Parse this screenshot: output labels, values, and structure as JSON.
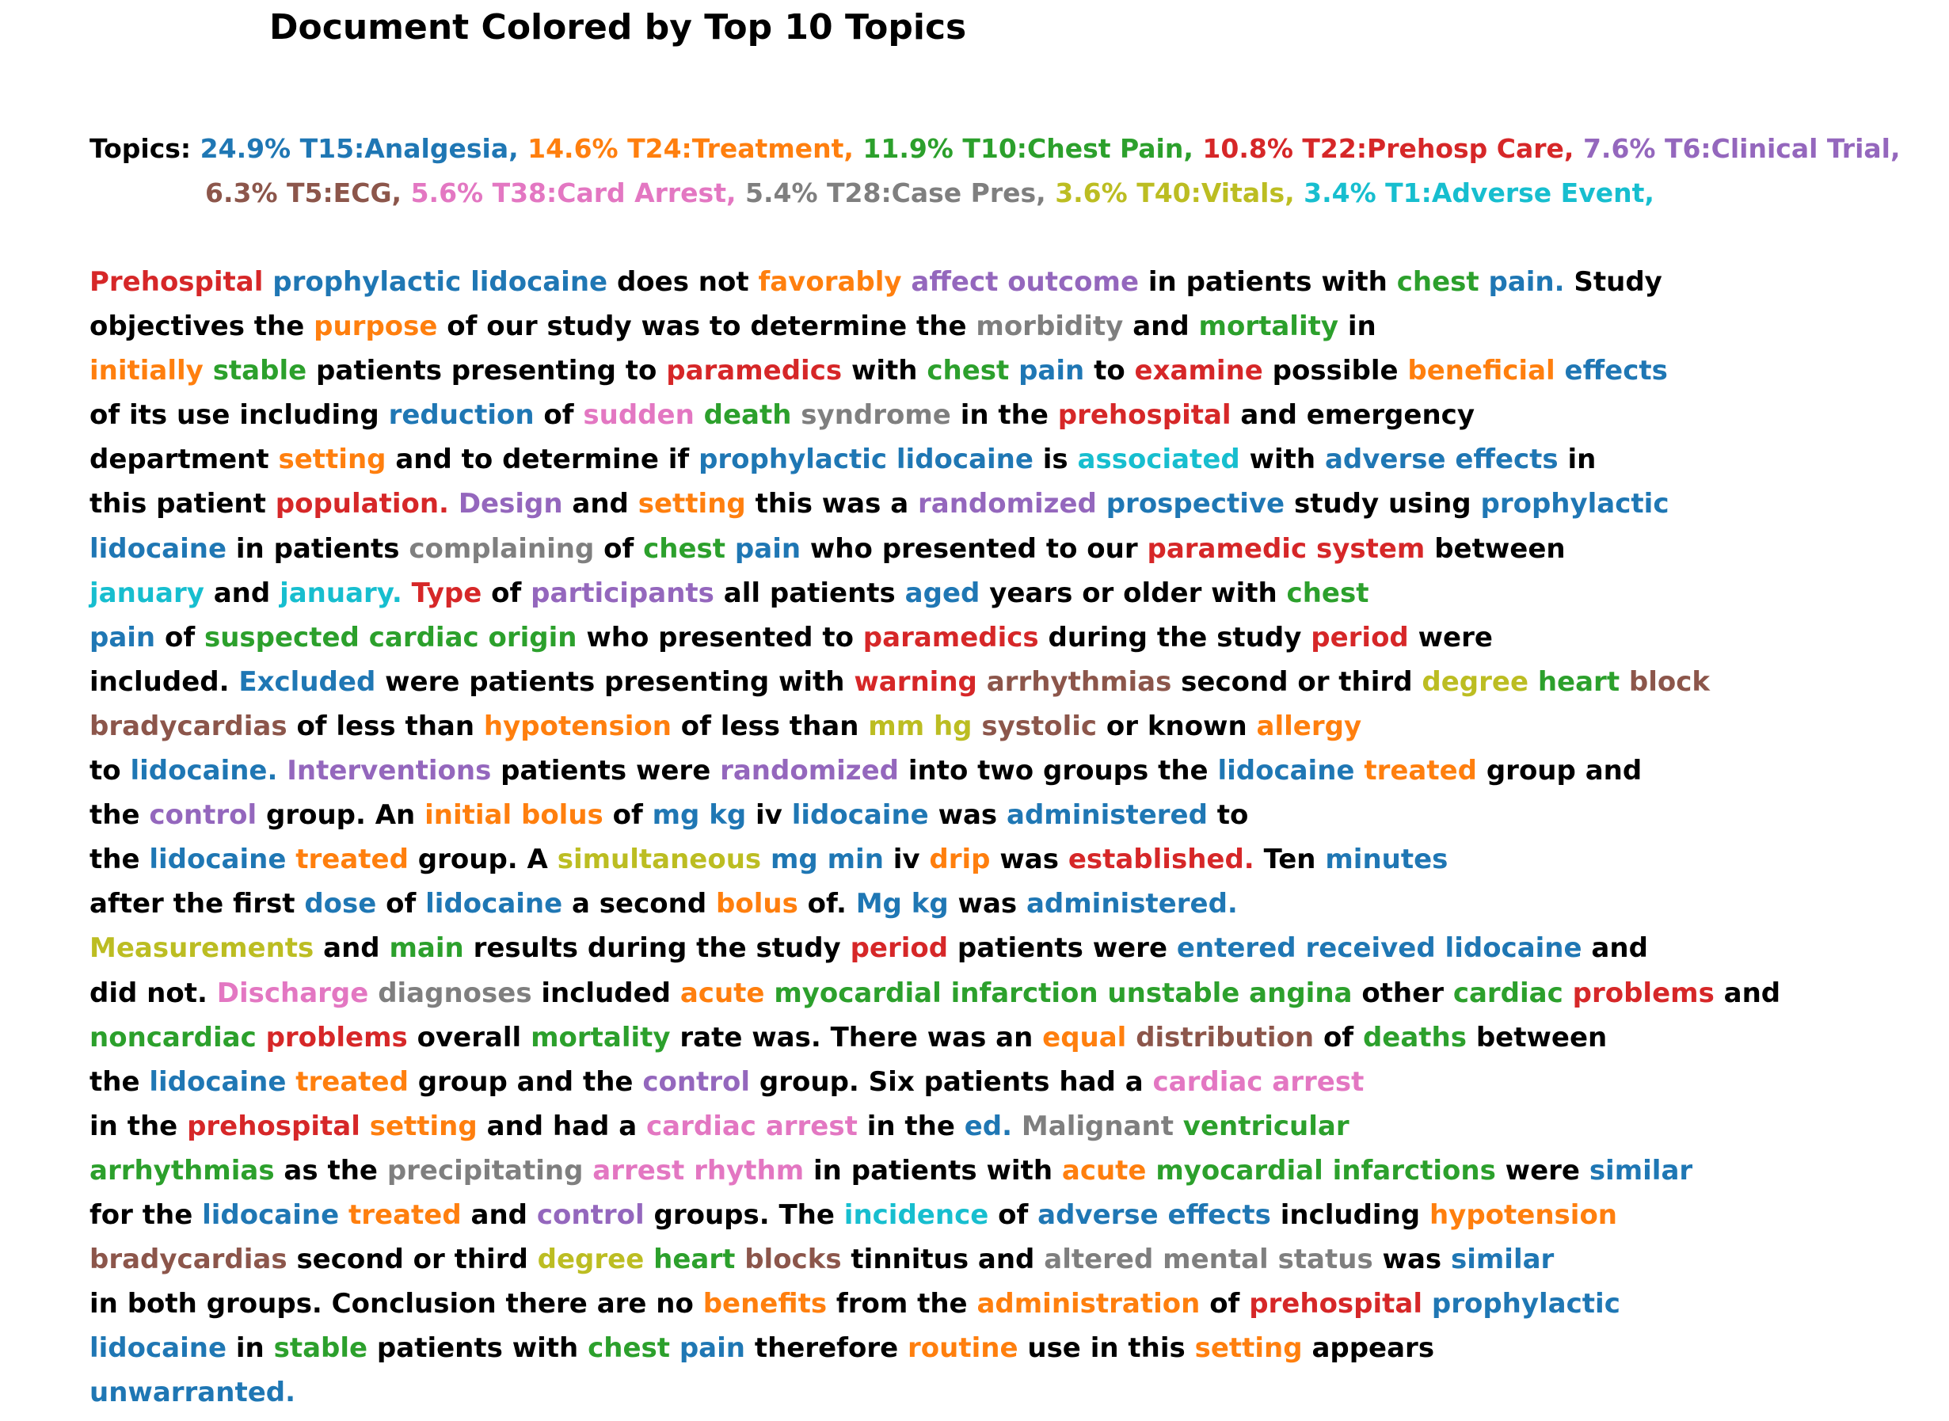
{
  "title": "Document Colored by Top 10 Topics",
  "colors": {
    "plain": "#000000",
    "T15": "#1f77b4",
    "T24": "#ff7f0e",
    "T10": "#2ca02c",
    "T22": "#d62728",
    "T6": "#9467bd",
    "T5": "#8c564b",
    "T38": "#e377c2",
    "T28": "#7f7f7f",
    "T40": "#bcbd22",
    "T1": "#17becf"
  },
  "legend": {
    "label": "Topics:",
    "topics": [
      {
        "text": "24.9% T15:Analgesia,",
        "topic": "T15"
      },
      {
        "text": "14.6% T24:Treatment,",
        "topic": "T24"
      },
      {
        "text": "11.9% T10:Chest Pain,",
        "topic": "T10"
      },
      {
        "text": "10.8% T22:Prehosp Care,",
        "topic": "T22"
      },
      {
        "text": "7.6% T6:Clinical Trial,",
        "topic": "T6"
      },
      {
        "text": "6.3% T5:ECG,",
        "topic": "T5"
      },
      {
        "text": "5.6% T38:Card Arrest,",
        "topic": "T38"
      },
      {
        "text": "5.4% T28:Case Pres,",
        "topic": "T28"
      },
      {
        "text": "3.6% T40:Vitals,",
        "topic": "T40"
      },
      {
        "text": "3.4% T1:Adverse Event,",
        "topic": "T1"
      }
    ]
  },
  "document_lines": [
    [
      [
        "Prehospital",
        "T22"
      ],
      [
        "prophylactic",
        "T15"
      ],
      [
        "lidocaine",
        "T15"
      ],
      [
        "does not",
        null
      ],
      [
        "favorably",
        "T24"
      ],
      [
        "affect",
        "T6"
      ],
      [
        "outcome",
        "T6"
      ],
      [
        "in patients with",
        null
      ],
      [
        "chest",
        "T10"
      ],
      [
        "pain.",
        "T15"
      ],
      [
        "Study",
        null
      ]
    ],
    [
      [
        "objectives the",
        null
      ],
      [
        "purpose",
        "T24"
      ],
      [
        "of our study was to determine the",
        null
      ],
      [
        "morbidity",
        "T28"
      ],
      [
        "and",
        null
      ],
      [
        "mortality",
        "T10"
      ],
      [
        "in",
        null
      ]
    ],
    [
      [
        "initially",
        "T24"
      ],
      [
        "stable",
        "T10"
      ],
      [
        "patients presenting to",
        null
      ],
      [
        "paramedics",
        "T22"
      ],
      [
        "with",
        null
      ],
      [
        "chest",
        "T10"
      ],
      [
        "pain",
        "T15"
      ],
      [
        "to",
        null
      ],
      [
        "examine",
        "T22"
      ],
      [
        "possible",
        null
      ],
      [
        "beneficial",
        "T24"
      ],
      [
        "effects",
        "T15"
      ]
    ],
    [
      [
        "of its use including",
        null
      ],
      [
        "reduction",
        "T15"
      ],
      [
        "of",
        null
      ],
      [
        "sudden",
        "T38"
      ],
      [
        "death",
        "T10"
      ],
      [
        "syndrome",
        "T28"
      ],
      [
        "in the",
        null
      ],
      [
        "prehospital",
        "T22"
      ],
      [
        "and emergency",
        null
      ]
    ],
    [
      [
        "department",
        null
      ],
      [
        "setting",
        "T24"
      ],
      [
        "and to determine if",
        null
      ],
      [
        "prophylactic",
        "T15"
      ],
      [
        "lidocaine",
        "T15"
      ],
      [
        "is",
        null
      ],
      [
        "associated",
        "T1"
      ],
      [
        "with",
        null
      ],
      [
        "adverse",
        "T15"
      ],
      [
        "effects",
        "T15"
      ],
      [
        "in",
        null
      ]
    ],
    [
      [
        "this patient",
        null
      ],
      [
        "population.",
        "T22"
      ],
      [
        "Design",
        "T6"
      ],
      [
        "and",
        null
      ],
      [
        "setting",
        "T24"
      ],
      [
        "this was a",
        null
      ],
      [
        "randomized",
        "T6"
      ],
      [
        "prospective",
        "T15"
      ],
      [
        "study using",
        null
      ],
      [
        "prophylactic",
        "T15"
      ]
    ],
    [
      [
        "lidocaine",
        "T15"
      ],
      [
        "in patients",
        null
      ],
      [
        "complaining",
        "T28"
      ],
      [
        "of",
        null
      ],
      [
        "chest",
        "T10"
      ],
      [
        "pain",
        "T15"
      ],
      [
        "who presented to our",
        null
      ],
      [
        "paramedic",
        "T22"
      ],
      [
        "system",
        "T22"
      ],
      [
        "between",
        null
      ]
    ],
    [
      [
        "january",
        "T1"
      ],
      [
        "and",
        null
      ],
      [
        "january.",
        "T1"
      ],
      [
        "Type",
        "T22"
      ],
      [
        "of",
        null
      ],
      [
        "participants",
        "T6"
      ],
      [
        "all patients",
        null
      ],
      [
        "aged",
        "T15"
      ],
      [
        "years or older with",
        null
      ],
      [
        "chest",
        "T10"
      ]
    ],
    [
      [
        "pain",
        "T15"
      ],
      [
        "of",
        null
      ],
      [
        "suspected",
        "T10"
      ],
      [
        "cardiac",
        "T10"
      ],
      [
        "origin",
        "T10"
      ],
      [
        "who presented to",
        null
      ],
      [
        "paramedics",
        "T22"
      ],
      [
        "during the study",
        null
      ],
      [
        "period",
        "T22"
      ],
      [
        "were",
        null
      ]
    ],
    [
      [
        "included.",
        null
      ],
      [
        "Excluded",
        "T15"
      ],
      [
        "were patients presenting with",
        null
      ],
      [
        "warning",
        "T22"
      ],
      [
        "arrhythmias",
        "T5"
      ],
      [
        "second or third",
        null
      ],
      [
        "degree",
        "T40"
      ],
      [
        "heart",
        "T10"
      ],
      [
        "block",
        "T5"
      ]
    ],
    [
      [
        "bradycardias",
        "T5"
      ],
      [
        "of less than",
        null
      ],
      [
        "hypotension",
        "T24"
      ],
      [
        "of less than",
        null
      ],
      [
        "mm",
        "T40"
      ],
      [
        "hg",
        "T40"
      ],
      [
        "systolic",
        "T5"
      ],
      [
        "or known",
        null
      ],
      [
        "allergy",
        "T24"
      ]
    ],
    [
      [
        "to",
        null
      ],
      [
        "lidocaine.",
        "T15"
      ],
      [
        "Interventions",
        "T6"
      ],
      [
        "patients were",
        null
      ],
      [
        "randomized",
        "T6"
      ],
      [
        "into two groups the",
        null
      ],
      [
        "lidocaine",
        "T15"
      ],
      [
        "treated",
        "T24"
      ],
      [
        "group and",
        null
      ]
    ],
    [
      [
        "the",
        null
      ],
      [
        "control",
        "T6"
      ],
      [
        "group. An",
        null
      ],
      [
        "initial",
        "T24"
      ],
      [
        "bolus",
        "T24"
      ],
      [
        "of",
        null
      ],
      [
        "mg",
        "T15"
      ],
      [
        "kg",
        "T15"
      ],
      [
        "iv",
        null
      ],
      [
        "lidocaine",
        "T15"
      ],
      [
        "was",
        null
      ],
      [
        "administered",
        "T15"
      ],
      [
        "to",
        null
      ]
    ],
    [
      [
        "the",
        null
      ],
      [
        "lidocaine",
        "T15"
      ],
      [
        "treated",
        "T24"
      ],
      [
        "group. A",
        null
      ],
      [
        "simultaneous",
        "T40"
      ],
      [
        "mg",
        "T15"
      ],
      [
        "min",
        "T15"
      ],
      [
        "iv",
        null
      ],
      [
        "drip",
        "T24"
      ],
      [
        "was",
        null
      ],
      [
        "established.",
        "T22"
      ],
      [
        "Ten",
        null
      ],
      [
        "minutes",
        "T15"
      ]
    ],
    [
      [
        "after the first",
        null
      ],
      [
        "dose",
        "T15"
      ],
      [
        "of",
        null
      ],
      [
        "lidocaine",
        "T15"
      ],
      [
        "a second",
        null
      ],
      [
        "bolus",
        "T24"
      ],
      [
        "of.",
        null
      ],
      [
        "Mg",
        "T15"
      ],
      [
        "kg",
        "T15"
      ],
      [
        "was",
        null
      ],
      [
        "administered.",
        "T15"
      ]
    ],
    [
      [
        "Measurements",
        "T40"
      ],
      [
        "and",
        null
      ],
      [
        "main",
        "T10"
      ],
      [
        "results during the study",
        null
      ],
      [
        "period",
        "T22"
      ],
      [
        "patients were",
        null
      ],
      [
        "entered",
        "T15"
      ],
      [
        "received",
        "T15"
      ],
      [
        "lidocaine",
        "T15"
      ],
      [
        "and",
        null
      ]
    ],
    [
      [
        "did not.",
        null
      ],
      [
        "Discharge",
        "T38"
      ],
      [
        "diagnoses",
        "T28"
      ],
      [
        "included",
        null
      ],
      [
        "acute",
        "T24"
      ],
      [
        "myocardial",
        "T10"
      ],
      [
        "infarction",
        "T10"
      ],
      [
        "unstable",
        "T10"
      ],
      [
        "angina",
        "T10"
      ],
      [
        "other",
        null
      ],
      [
        "cardiac",
        "T10"
      ],
      [
        "problems",
        "T22"
      ],
      [
        "and",
        null
      ]
    ],
    [
      [
        "noncardiac",
        "T10"
      ],
      [
        "problems",
        "T22"
      ],
      [
        "overall",
        null
      ],
      [
        "mortality",
        "T10"
      ],
      [
        "rate was. There was an",
        null
      ],
      [
        "equal",
        "T24"
      ],
      [
        "distribution",
        "T5"
      ],
      [
        "of",
        null
      ],
      [
        "deaths",
        "T10"
      ],
      [
        "between",
        null
      ]
    ],
    [
      [
        "the",
        null
      ],
      [
        "lidocaine",
        "T15"
      ],
      [
        "treated",
        "T24"
      ],
      [
        "group and the",
        null
      ],
      [
        "control",
        "T6"
      ],
      [
        "group. Six patients had a",
        null
      ],
      [
        "cardiac",
        "T38"
      ],
      [
        "arrest",
        "T38"
      ]
    ],
    [
      [
        "in the",
        null
      ],
      [
        "prehospital",
        "T22"
      ],
      [
        "setting",
        "T24"
      ],
      [
        "and had a",
        null
      ],
      [
        "cardiac",
        "T38"
      ],
      [
        "arrest",
        "T38"
      ],
      [
        "in the",
        null
      ],
      [
        "ed.",
        "T15"
      ],
      [
        "Malignant",
        "T28"
      ],
      [
        "ventricular",
        "T10"
      ]
    ],
    [
      [
        "arrhythmias",
        "T10"
      ],
      [
        "as the",
        null
      ],
      [
        "precipitating",
        "T28"
      ],
      [
        "arrest",
        "T38"
      ],
      [
        "rhythm",
        "T38"
      ],
      [
        "in patients with",
        null
      ],
      [
        "acute",
        "T24"
      ],
      [
        "myocardial",
        "T10"
      ],
      [
        "infarctions",
        "T10"
      ],
      [
        "were",
        null
      ],
      [
        "similar",
        "T15"
      ]
    ],
    [
      [
        "for the",
        null
      ],
      [
        "lidocaine",
        "T15"
      ],
      [
        "treated",
        "T24"
      ],
      [
        "and",
        null
      ],
      [
        "control",
        "T6"
      ],
      [
        "groups. The",
        null
      ],
      [
        "incidence",
        "T1"
      ],
      [
        "of",
        null
      ],
      [
        "adverse",
        "T15"
      ],
      [
        "effects",
        "T15"
      ],
      [
        "including",
        null
      ],
      [
        "hypotension",
        "T24"
      ]
    ],
    [
      [
        "bradycardias",
        "T5"
      ],
      [
        "second or third",
        null
      ],
      [
        "degree",
        "T40"
      ],
      [
        "heart",
        "T10"
      ],
      [
        "blocks",
        "T5"
      ],
      [
        "tinnitus and",
        null
      ],
      [
        "altered",
        "T28"
      ],
      [
        "mental",
        "T28"
      ],
      [
        "status",
        "T28"
      ],
      [
        "was",
        null
      ],
      [
        "similar",
        "T15"
      ]
    ],
    [
      [
        "in both groups. Conclusion there are no",
        null
      ],
      [
        "benefits",
        "T24"
      ],
      [
        "from the",
        null
      ],
      [
        "administration",
        "T24"
      ],
      [
        "of",
        null
      ],
      [
        "prehospital",
        "T22"
      ],
      [
        "prophylactic",
        "T15"
      ]
    ],
    [
      [
        "lidocaine",
        "T15"
      ],
      [
        "in",
        null
      ],
      [
        "stable",
        "T10"
      ],
      [
        "patients with",
        null
      ],
      [
        "chest",
        "T10"
      ],
      [
        "pain",
        "T15"
      ],
      [
        "therefore",
        null
      ],
      [
        "routine",
        "T24"
      ],
      [
        "use in this",
        null
      ],
      [
        "setting",
        "T24"
      ],
      [
        "appears",
        null
      ]
    ],
    [
      [
        "unwarranted.",
        "T15"
      ]
    ]
  ]
}
